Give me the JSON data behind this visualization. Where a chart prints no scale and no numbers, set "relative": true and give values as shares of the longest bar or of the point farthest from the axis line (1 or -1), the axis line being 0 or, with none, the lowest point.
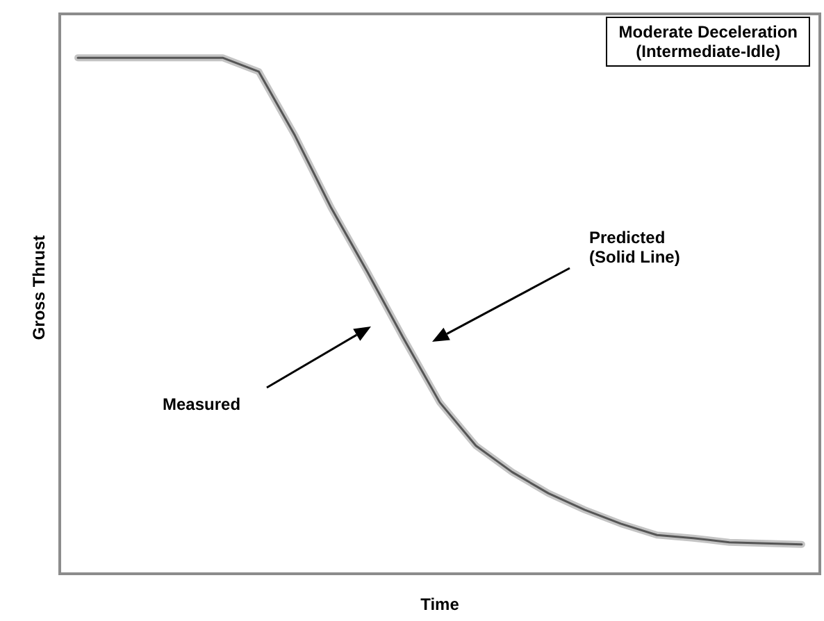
{
  "chart_data": {
    "type": "line",
    "relative": true,
    "title": "Moderate Deceleration\n(Intermediate-Idle)",
    "xlabel": "Time",
    "ylabel": "Gross Thrust",
    "categories": [
      null,
      null,
      null,
      null,
      null,
      null,
      null,
      null,
      null,
      null,
      null,
      null,
      null,
      null,
      null,
      null,
      null,
      null,
      null,
      null,
      null
    ],
    "series": [
      {
        "color": "#c4c4c4",
        "values": [
          1,
          1,
          1,
          1,
          1,
          0.973,
          0.849,
          0.709,
          0.585,
          0.456,
          0.332,
          0.248,
          0.197,
          0.156,
          0.124,
          0.097,
          0.075,
          0.069,
          0.061,
          0.059,
          0.057
        ]
      },
      {
        "color": "#555555",
        "values": [
          1,
          1,
          1,
          1,
          1,
          0.973,
          0.849,
          0.709,
          0.585,
          0.456,
          0.332,
          0.248,
          0.197,
          0.156,
          0.124,
          0.097,
          0.075,
          0.069,
          0.061,
          0.059,
          0.057
        ]
      }
    ],
    "annotations": [
      "Predicted\n(Solid Line)",
      "Measured"
    ],
    "marker": "none",
    "line_style": "solid"
  }
}
